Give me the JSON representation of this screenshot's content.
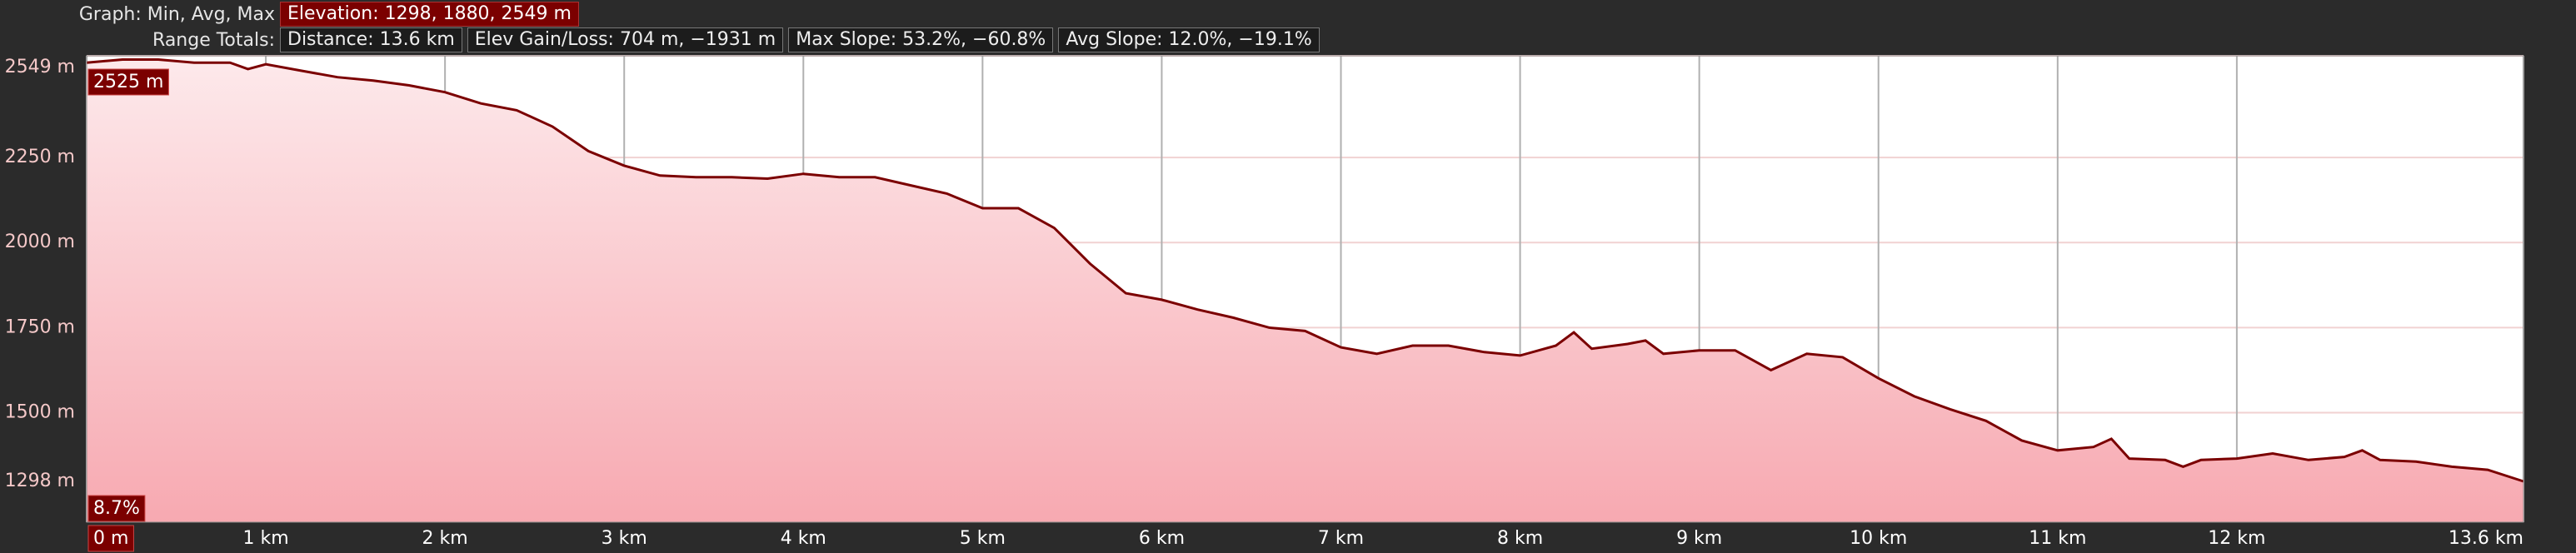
{
  "header": {
    "graph_label": "Graph: Min, Avg, Max",
    "elevation": "Elevation: 1298, 1880, 2549 m",
    "range_label": "Range Totals:",
    "distance": "Distance: 13.6 km",
    "gain_loss": "Elev Gain/Loss: 704 m, −1931 m",
    "max_slope": "Max Slope: 53.2%, −60.8%",
    "avg_slope": "Avg Slope: 12.0%, −19.1%"
  },
  "chart_data": {
    "type": "area",
    "x": [
      0,
      0.2,
      0.4,
      0.6,
      0.8,
      0.9,
      1.0,
      1.2,
      1.4,
      1.6,
      1.8,
      2.0,
      2.2,
      2.4,
      2.6,
      2.8,
      3.0,
      3.2,
      3.4,
      3.6,
      3.8,
      4.0,
      4.2,
      4.4,
      4.6,
      4.8,
      5.0,
      5.2,
      5.4,
      5.6,
      5.8,
      6.0,
      6.2,
      6.4,
      6.6,
      6.8,
      7.0,
      7.2,
      7.4,
      7.6,
      7.8,
      8.0,
      8.2,
      8.3,
      8.4,
      8.6,
      8.7,
      8.8,
      9.0,
      9.2,
      9.4,
      9.6,
      9.8,
      10.0,
      10.2,
      10.4,
      10.6,
      10.8,
      11.0,
      11.2,
      11.3,
      11.4,
      11.6,
      11.7,
      11.8,
      12.0,
      12.2,
      12.4,
      12.6,
      12.7,
      12.8,
      13.0,
      13.2,
      13.4,
      13.6
    ],
    "values": [
      2529,
      2538,
      2538,
      2529,
      2529,
      2510,
      2524,
      2505,
      2486,
      2476,
      2462,
      2442,
      2409,
      2389,
      2341,
      2269,
      2226,
      2197,
      2192,
      2192,
      2188,
      2202,
      2192,
      2192,
      2168,
      2144,
      2101,
      2101,
      2043,
      1938,
      1851,
      1832,
      1803,
      1779,
      1750,
      1740,
      1692,
      1673,
      1697,
      1697,
      1678,
      1668,
      1697,
      1736,
      1688,
      1702,
      1712,
      1673,
      1683,
      1683,
      1625,
      1673,
      1663,
      1601,
      1548,
      1510,
      1476,
      1418,
      1389,
      1399,
      1423,
      1365,
      1361,
      1341,
      1361,
      1365,
      1380,
      1361,
      1370,
      1389,
      1361,
      1356,
      1341,
      1332,
      1298
    ],
    "color": "#7b0000",
    "xlim": [
      0,
      13.6
    ],
    "xticks": [
      {
        "value": 0,
        "label": "0 m"
      },
      {
        "value": 1,
        "label": "1 km"
      },
      {
        "value": 2,
        "label": "2 km"
      },
      {
        "value": 3,
        "label": "3 km"
      },
      {
        "value": 4,
        "label": "4 km"
      },
      {
        "value": 5,
        "label": "5 km"
      },
      {
        "value": 6,
        "label": "6 km"
      },
      {
        "value": 7,
        "label": "7 km"
      },
      {
        "value": 8,
        "label": "8 km"
      },
      {
        "value": 9,
        "label": "9 km"
      },
      {
        "value": 10,
        "label": "10 km"
      },
      {
        "value": 11,
        "label": "11 km"
      },
      {
        "value": 12,
        "label": "12 km"
      },
      {
        "value": 13.6,
        "label": "13.6 km"
      }
    ],
    "ylim": [
      1178,
      2549
    ],
    "yticks": [
      {
        "value": 1298,
        "label": "1298 m"
      },
      {
        "value": 1500,
        "label": "1500 m"
      },
      {
        "value": 1750,
        "label": "1750 m"
      },
      {
        "value": 2000,
        "label": "2000 m"
      },
      {
        "value": 2250,
        "label": "2250 m"
      },
      {
        "value": 2549,
        "label": "2549 m"
      }
    ],
    "grid": true,
    "annotations": [
      "2525 m",
      "8.7%"
    ]
  }
}
